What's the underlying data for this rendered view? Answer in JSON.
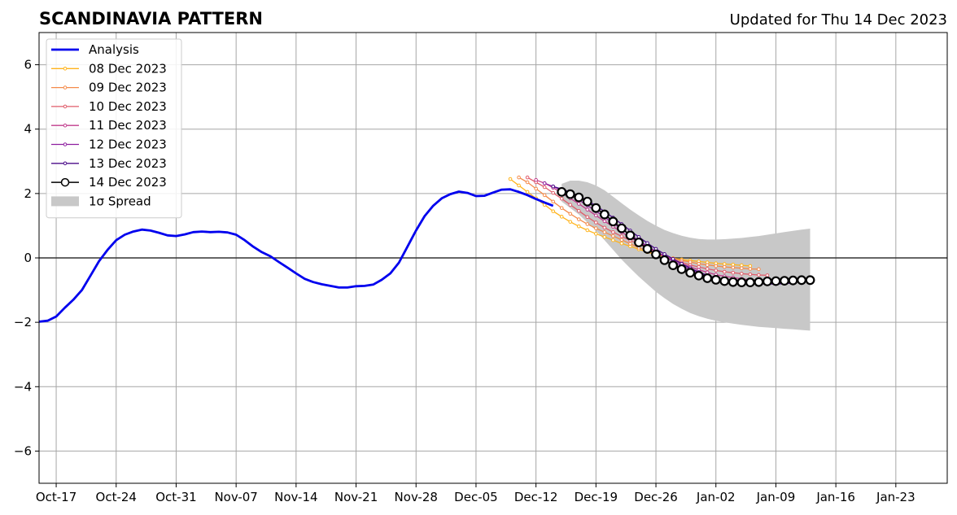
{
  "chart_data": {
    "type": "line",
    "title": "SCANDINAVIA PATTERN",
    "subtitle": "Updated for Thu 14 Dec 2023",
    "xlabel": "",
    "ylabel": "",
    "x_start": "2023-10-15",
    "x_end": "2024-01-29",
    "ylim": [
      -7,
      7
    ],
    "y_ticks": [
      -6,
      -4,
      -2,
      0,
      2,
      4,
      6
    ],
    "y_tick_labels": [
      "−6",
      "−4",
      "−2",
      "0",
      "2",
      "4",
      "6"
    ],
    "x_ticks": [
      "2023-10-17",
      "2023-10-24",
      "2023-10-31",
      "2023-11-07",
      "2023-11-14",
      "2023-11-21",
      "2023-11-28",
      "2023-12-05",
      "2023-12-12",
      "2023-12-19",
      "2023-12-26",
      "2024-01-02",
      "2024-01-09",
      "2024-01-16",
      "2024-01-23"
    ],
    "x_tick_labels": [
      "Oct-17",
      "Oct-24",
      "Oct-31",
      "Nov-07",
      "Nov-14",
      "Nov-21",
      "Nov-28",
      "Dec-05",
      "Dec-12",
      "Dec-19",
      "Dec-26",
      "Jan-02",
      "Jan-09",
      "Jan-16",
      "Jan-23"
    ],
    "grid": true,
    "legend_position": "top-left",
    "analysis": {
      "name": "Analysis",
      "color": "#0000ee",
      "x": [
        "2023-10-15",
        "2023-10-16",
        "2023-10-17",
        "2023-10-18",
        "2023-10-19",
        "2023-10-20",
        "2023-10-21",
        "2023-10-22",
        "2023-10-23",
        "2023-10-24",
        "2023-10-25",
        "2023-10-26",
        "2023-10-27",
        "2023-10-28",
        "2023-10-29",
        "2023-10-30",
        "2023-10-31",
        "2023-11-01",
        "2023-11-02",
        "2023-11-03",
        "2023-11-04",
        "2023-11-05",
        "2023-11-06",
        "2023-11-07",
        "2023-11-08",
        "2023-11-09",
        "2023-11-10",
        "2023-11-11",
        "2023-11-12",
        "2023-11-13",
        "2023-11-14",
        "2023-11-15",
        "2023-11-16",
        "2023-11-17",
        "2023-11-18",
        "2023-11-19",
        "2023-11-20",
        "2023-11-21",
        "2023-11-22",
        "2023-11-23",
        "2023-11-24",
        "2023-11-25",
        "2023-11-26",
        "2023-11-27",
        "2023-11-28",
        "2023-11-29",
        "2023-11-30",
        "2023-12-01",
        "2023-12-02",
        "2023-12-03",
        "2023-12-04",
        "2023-12-05",
        "2023-12-06",
        "2023-12-07",
        "2023-12-08",
        "2023-12-09",
        "2023-12-10",
        "2023-12-11",
        "2023-12-12",
        "2023-12-13",
        "2023-12-14"
      ],
      "values": [
        -1.98,
        -1.95,
        -1.82,
        -1.55,
        -1.3,
        -1.0,
        -0.55,
        -0.1,
        0.25,
        0.55,
        0.72,
        0.82,
        0.88,
        0.85,
        0.78,
        0.7,
        0.68,
        0.73,
        0.8,
        0.82,
        0.8,
        0.81,
        0.79,
        0.72,
        0.55,
        0.35,
        0.18,
        0.05,
        -0.13,
        -0.3,
        -0.48,
        -0.65,
        -0.75,
        -0.82,
        -0.87,
        -0.92,
        -0.92,
        -0.88,
        -0.87,
        -0.83,
        -0.68,
        -0.48,
        -0.15,
        0.35,
        0.85,
        1.3,
        1.62,
        1.85,
        1.98,
        2.06,
        2.02,
        1.92,
        1.93,
        2.03,
        2.12,
        2.13,
        2.05,
        1.95,
        1.83,
        1.72,
        1.62
      ]
    },
    "forecasts": [
      {
        "name": "08 Dec 2023",
        "color": "#ffb31a",
        "start": "2023-12-09",
        "values": [
          2.45,
          2.25,
          2.05,
          1.85,
          1.65,
          1.45,
          1.28,
          1.12,
          0.98,
          0.86,
          0.75,
          0.65,
          0.55,
          0.45,
          0.36,
          0.27,
          0.18,
          0.1,
          0.04,
          -0.01,
          -0.05,
          -0.08,
          -0.11,
          -0.14,
          -0.17,
          -0.19,
          -0.21,
          -0.23,
          -0.25
        ]
      },
      {
        "name": "09 Dec 2023",
        "color": "#f48a4a",
        "start": "2023-12-10",
        "values": [
          2.5,
          2.35,
          2.15,
          1.95,
          1.75,
          1.55,
          1.37,
          1.2,
          1.05,
          0.92,
          0.8,
          0.68,
          0.56,
          0.44,
          0.32,
          0.22,
          0.13,
          0.05,
          -0.02,
          -0.08,
          -0.13,
          -0.18,
          -0.22,
          -0.25,
          -0.28,
          -0.3,
          -0.32,
          -0.34,
          -0.35
        ]
      },
      {
        "name": "10 Dec 2023",
        "color": "#e05c6a",
        "start": "2023-12-11",
        "values": [
          2.5,
          2.35,
          2.2,
          2.02,
          1.84,
          1.65,
          1.46,
          1.27,
          1.1,
          0.94,
          0.8,
          0.67,
          0.54,
          0.42,
          0.3,
          0.18,
          0.06,
          -0.05,
          -0.14,
          -0.22,
          -0.28,
          -0.34,
          -0.39,
          -0.43,
          -0.46,
          -0.49,
          -0.51,
          -0.53,
          -0.54
        ]
      },
      {
        "name": "11 Dec 2023",
        "color": "#c03b8c",
        "start": "2023-12-12",
        "values": [
          2.42,
          2.32,
          2.18,
          2.02,
          1.85,
          1.68,
          1.5,
          1.32,
          1.14,
          0.97,
          0.8,
          0.63,
          0.48,
          0.34,
          0.2,
          0.06,
          -0.06,
          -0.18,
          -0.28,
          -0.37,
          -0.45,
          -0.52,
          -0.57,
          -0.61,
          -0.65,
          -0.68,
          -0.7,
          -0.72,
          -0.74
        ]
      },
      {
        "name": "12 Dec 2023",
        "color": "#8e1ea0",
        "start": "2023-12-13",
        "values": [
          2.32,
          2.22,
          2.1,
          1.96,
          1.8,
          1.63,
          1.45,
          1.27,
          1.08,
          0.9,
          0.72,
          0.54,
          0.36,
          0.2,
          0.05,
          -0.1,
          -0.24,
          -0.36,
          -0.47,
          -0.56,
          -0.63,
          -0.69,
          -0.73,
          -0.76,
          -0.78,
          -0.79,
          -0.8,
          -0.8,
          -0.79
        ]
      },
      {
        "name": "13 Dec 2023",
        "color": "#4b0c8a",
        "start": "2023-12-14",
        "values": [
          2.22,
          2.14,
          2.04,
          1.92,
          1.78,
          1.62,
          1.44,
          1.25,
          1.05,
          0.85,
          0.65,
          0.46,
          0.28,
          0.12,
          -0.03,
          -0.18,
          -0.32,
          -0.44,
          -0.54,
          -0.62,
          -0.68,
          -0.73,
          -0.76,
          -0.78,
          -0.8,
          -0.81,
          -0.81,
          -0.8,
          -0.78
        ]
      },
      {
        "name": "14 Dec 2023",
        "color": "#000000",
        "start": "2023-12-15",
        "values": [
          2.05,
          1.98,
          1.88,
          1.75,
          1.55,
          1.35,
          1.13,
          0.92,
          0.7,
          0.48,
          0.28,
          0.11,
          -0.07,
          -0.23,
          -0.35,
          -0.46,
          -0.55,
          -0.63,
          -0.68,
          -0.72,
          -0.75,
          -0.76,
          -0.76,
          -0.75,
          -0.73,
          -0.72,
          -0.71,
          -0.7,
          -0.69,
          -0.69
        ]
      }
    ],
    "spread": {
      "name": "1σ Spread",
      "color": "#c8c8c8",
      "start": "2023-12-15",
      "upper": [
        2.3,
        2.4,
        2.4,
        2.35,
        2.25,
        2.1,
        1.9,
        1.7,
        1.5,
        1.32,
        1.15,
        1.0,
        0.87,
        0.77,
        0.69,
        0.63,
        0.59,
        0.57,
        0.57,
        0.58,
        0.6,
        0.62,
        0.65,
        0.68,
        0.72,
        0.76,
        0.8,
        0.84,
        0.88,
        0.91
      ],
      "lower": [
        1.75,
        1.55,
        1.35,
        1.1,
        0.85,
        0.55,
        0.25,
        -0.05,
        -0.32,
        -0.58,
        -0.82,
        -1.05,
        -1.25,
        -1.43,
        -1.58,
        -1.71,
        -1.81,
        -1.89,
        -1.95,
        -2.0,
        -2.04,
        -2.08,
        -2.11,
        -2.14,
        -2.16,
        -2.18,
        -2.2,
        -2.22,
        -2.24,
        -2.26
      ]
    }
  }
}
